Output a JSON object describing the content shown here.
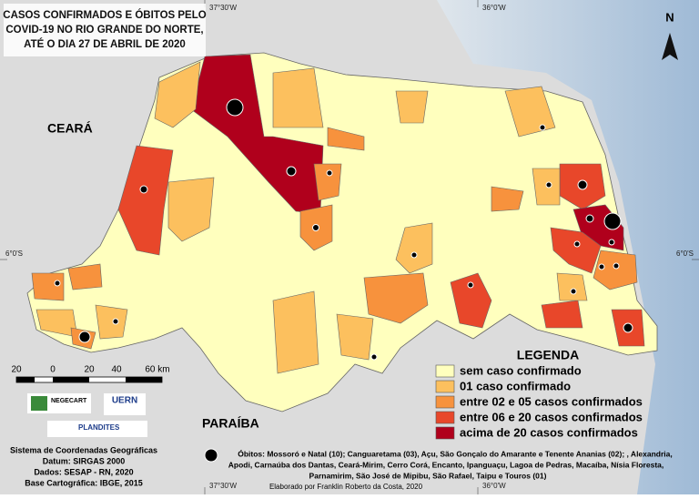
{
  "title": [
    "CASOS CONFIRMADOS E ÓBITOS PELO",
    "COVID-19 NO RIO GRANDE DO NORTE,",
    "ATÉ O DIA 27 DE ABRIL DE 2020"
  ],
  "coords": {
    "top_left": "37°30'W",
    "top_right": "36°0'W",
    "bottom_left": "37°30'W",
    "bottom_right": "36°0'W",
    "left": "6°0'S",
    "right": "6°0'S"
  },
  "north": "N",
  "regions": {
    "ceara": "CEARÁ",
    "paraiba": "PARAÍBA"
  },
  "scale": [
    "20",
    "0",
    "20",
    "40",
    "60 km"
  ],
  "legend": {
    "title": "LEGENDA",
    "items": [
      {
        "label": "sem caso confirmado",
        "color": "#ffffbe"
      },
      {
        "label": "01 caso confirmado",
        "color": "#fcc05e"
      },
      {
        "label": "entre 02 e 05 casos confirmados",
        "color": "#f7923d"
      },
      {
        "label": "entre 06 e 20 casos confirmados",
        "color": "#e8472a"
      },
      {
        "label": "acima de 20 casos confirmados",
        "color": "#b0001c"
      }
    ]
  },
  "logos": {
    "negecart": "NEGECART",
    "uern": "UERN",
    "plandites": "PLANDITES"
  },
  "info": [
    "Sistema de Coordenadas Geográficas",
    "Datum: SIRGAS 2000",
    "Dados: SESAP - RN, 2020",
    "Base Cartográfica: IBGE, 2015"
  ],
  "deaths": [
    "Óbitos: Mossoró e Natal (10); Canguaretama (03), Açu, São Gonçalo do Amarante e Tenente Ananias  (02); , Alexandria,",
    "Apodi, Carnaúba dos Dantas, Ceará-Mirim, Cerro Corá, Encanto, Ipanguaçu, Lagoa de Pedras, Macaíba, Nísia Floresta,",
    "Parnamirim, São José de Mipibu, São Rafael, Taipu e Touros (01)"
  ],
  "credit": "Elaborado por Franklin Roberto da Costa, 2020"
}
